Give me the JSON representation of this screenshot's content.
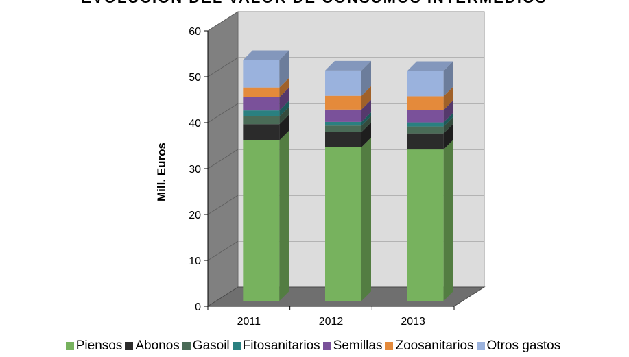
{
  "chart_data": {
    "type": "bar",
    "stacked": true,
    "three_d": true,
    "title": "EVOLUCIÓN DEL VALOR DE CONSUMOS INTERMEDIOS",
    "ylabel": "Mill. Euros",
    "xlabel": "",
    "ylim": [
      0,
      60
    ],
    "yticks": [
      0,
      10,
      20,
      30,
      40,
      50,
      60
    ],
    "categories": [
      "2011",
      "2012",
      "2013"
    ],
    "grid": true,
    "legend_position": "bottom",
    "series": [
      {
        "name": "Piensos",
        "color": "#77b25e",
        "values": [
          35.0,
          33.5,
          33.0
        ]
      },
      {
        "name": "Abonos",
        "color": "#2b2b2b",
        "values": [
          3.5,
          3.3,
          3.5
        ]
      },
      {
        "name": "Gasoil",
        "color": "#4a6b57",
        "values": [
          1.7,
          1.4,
          1.5
        ]
      },
      {
        "name": "Fitosanitarios",
        "color": "#2a8080",
        "values": [
          1.3,
          0.8,
          0.9
        ]
      },
      {
        "name": "Semillas",
        "color": "#7a519a",
        "values": [
          2.9,
          2.7,
          2.7
        ]
      },
      {
        "name": "Zoosanitarios",
        "color": "#e48a3b",
        "values": [
          2.1,
          3.0,
          3.0
        ]
      },
      {
        "name": "Otros gastos",
        "color": "#9ab2dd",
        "values": [
          6.0,
          5.5,
          5.5
        ]
      }
    ]
  }
}
